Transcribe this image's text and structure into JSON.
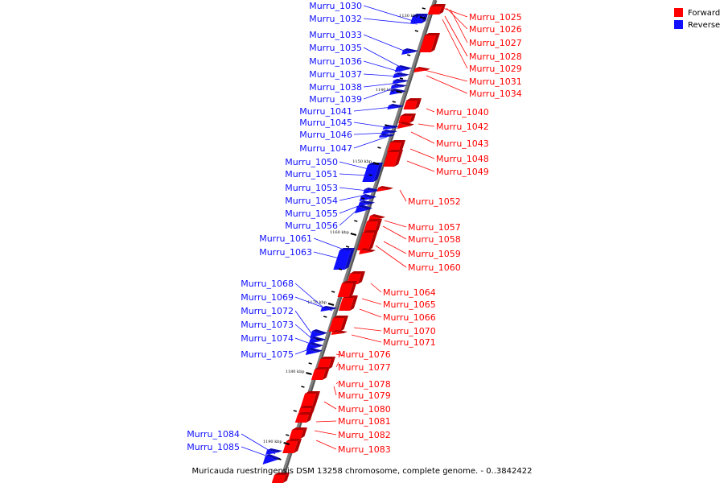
{
  "caption": "Muricauda ruestringensis DSM 13258 chromosome, complete genome. - 0..3842422",
  "legend": {
    "forward": {
      "label": "Forward",
      "color": "#ff0000"
    },
    "reverse": {
      "label": "Reverse",
      "color": "#1010ff"
    }
  },
  "backbone_color": "#808080",
  "ticks": [
    "1130 kbp",
    "1140 kbp",
    "1150 kbp",
    "1160 kbp",
    "1170 kbp",
    "1180 kbp",
    "1190 kbp"
  ],
  "reverse_genes": [
    "Murru_1030",
    "Murru_1032",
    "Murru_1033",
    "Murru_1035",
    "Murru_1036",
    "Murru_1037",
    "Murru_1038",
    "Murru_1039",
    "Murru_1041",
    "Murru_1045",
    "Murru_1046",
    "Murru_1047",
    "Murru_1050",
    "Murru_1051",
    "Murru_1053",
    "Murru_1054",
    "Murru_1055",
    "Murru_1056",
    "Murru_1061",
    "Murru_1063",
    "Murru_1068",
    "Murru_1069",
    "Murru_1072",
    "Murru_1073",
    "Murru_1074",
    "Murru_1075",
    "Murru_1084",
    "Murru_1085"
  ],
  "forward_genes": [
    "Murru_1025",
    "Murru_1026",
    "Murru_1027",
    "Murru_1028",
    "Murru_1029",
    "Murru_1031",
    "Murru_1034",
    "Murru_1040",
    "Murru_1042",
    "Murru_1043",
    "Murru_1048",
    "Murru_1049",
    "Murru_1052",
    "Murru_1057",
    "Murru_1058",
    "Murru_1059",
    "Murru_1060",
    "Murru_1064",
    "Murru_1065",
    "Murru_1066",
    "Murru_1070",
    "Murru_1071",
    "Murru_1076",
    "Murru_1077",
    "Murru_1078",
    "Murru_1079",
    "Murru_1080",
    "Murru_1081",
    "Murru_1082",
    "Murru_1083"
  ]
}
